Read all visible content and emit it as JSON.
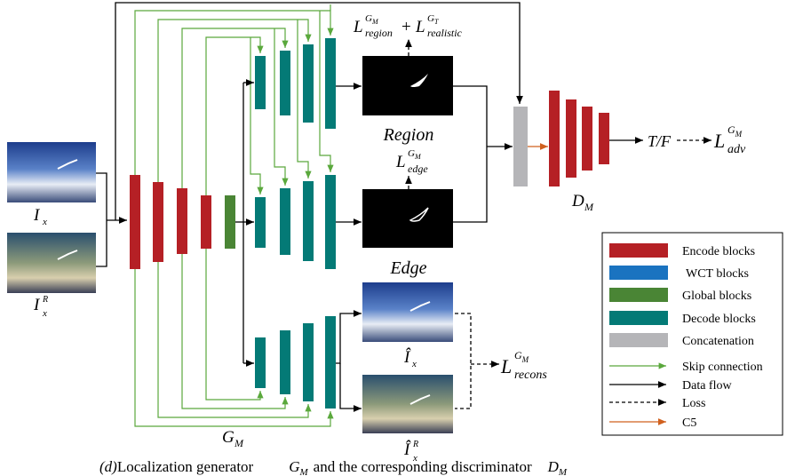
{
  "inputs": {
    "ix": {
      "base": "I",
      "sub": "x"
    },
    "ixr": {
      "base": "I",
      "sup": "R",
      "sub": "x"
    }
  },
  "outputs": {
    "region": "Region",
    "edge": "Edge",
    "ihat": {
      "base": "Î",
      "sub": "x"
    },
    "ihatr": {
      "base": "Î",
      "sup": "R",
      "sub": "x"
    }
  },
  "losses": {
    "region": {
      "base": "L",
      "sup": "G",
      "sup_sub": "M",
      "sub": "region",
      "plus": "+",
      "base2": "L",
      "sup2": "G",
      "sup2_sub": "T",
      "sub2": "realistic"
    },
    "edge": {
      "base": "L",
      "sup": "G",
      "sup_sub": "M",
      "sub": "edge"
    },
    "recons": {
      "base": "L",
      "sup": "G",
      "sup_sub": "M",
      "sub": "recons"
    },
    "adv": {
      "base": "L",
      "sup": "G",
      "sup_sub": "M",
      "sub": "adv"
    },
    "tf": "T/F"
  },
  "blocks": {
    "gm": {
      "base": "G",
      "sub": "M"
    },
    "dm": {
      "base": "D",
      "sub": "M"
    }
  },
  "legend": [
    "Encode blocks",
    "WCT blocks",
    "Global blocks",
    "Decode blocks",
    "Concatenation",
    "Skip connection",
    "Data flow",
    "Loss",
    "C5"
  ],
  "caption": {
    "label": "(d)",
    "text1": "Localization generator",
    "g": "G",
    "gsub": "M",
    "text2": "and the corresponding discriminator",
    "d": "D",
    "dsub": "M"
  }
}
